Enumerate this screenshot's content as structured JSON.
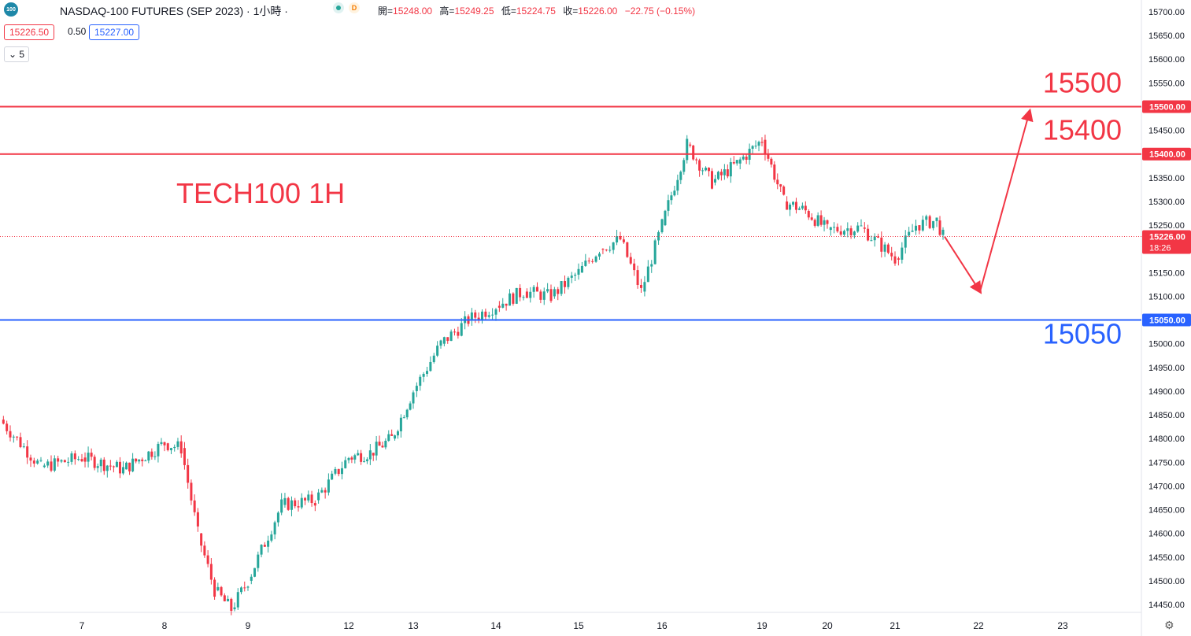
{
  "header": {
    "logo_text": "100",
    "title": "NASDAQ-100 FUTURES (SEP 2023) · 1小時 ·",
    "badge_d": "D",
    "ohlc": {
      "open_label": "開=",
      "open": "15248.00",
      "high_label": "高=",
      "high": "15249.25",
      "low_label": "低=",
      "low": "15224.75",
      "close_label": "收=",
      "close": "15226.00",
      "change": "−22.75 (−0.15%)"
    }
  },
  "trade": {
    "sell_price": "15226.50",
    "spread": "0.50",
    "buy_price": "15227.00",
    "indicator_count": "5"
  },
  "chart_data": {
    "type": "candlestick",
    "title": "TECH100 1H",
    "ylim": [
      14425,
      15720
    ],
    "y_ticks": [
      15700,
      15650,
      15600,
      15550,
      15500,
      15450,
      15400,
      15350,
      15300,
      15250,
      15200,
      15150,
      15100,
      15050,
      15000,
      14950,
      14900,
      14850,
      14800,
      14750,
      14700,
      14650,
      14600,
      14550,
      14500,
      14450
    ],
    "x_ticks": [
      "7",
      "8",
      "9",
      "12",
      "13",
      "14",
      "15",
      "16",
      "19",
      "20",
      "21",
      "22",
      "23"
    ],
    "series_keypoints": [
      {
        "t": "6",
        "price": 14840
      },
      {
        "t": "6",
        "price": 14740
      },
      {
        "t": "7",
        "price": 14760
      },
      {
        "t": "7",
        "price": 14735
      },
      {
        "t": "8",
        "price": 14790
      },
      {
        "t": "8",
        "price": 14780
      },
      {
        "t": "8",
        "price": 14600
      },
      {
        "t": "8",
        "price": 14480
      },
      {
        "t": "8",
        "price": 14440
      },
      {
        "t": "9",
        "price": 14500
      },
      {
        "t": "9",
        "price": 14660
      },
      {
        "t": "9",
        "price": 14670
      },
      {
        "t": "12",
        "price": 14760
      },
      {
        "t": "12",
        "price": 14770
      },
      {
        "t": "12",
        "price": 14800
      },
      {
        "t": "13",
        "price": 14900
      },
      {
        "t": "13",
        "price": 15000
      },
      {
        "t": "13",
        "price": 15050
      },
      {
        "t": "14",
        "price": 15080
      },
      {
        "t": "14",
        "price": 15110
      },
      {
        "t": "14",
        "price": 15100
      },
      {
        "t": "15",
        "price": 15150
      },
      {
        "t": "15",
        "price": 15200
      },
      {
        "t": "15",
        "price": 15220
      },
      {
        "t": "15",
        "price": 15110
      },
      {
        "t": "16",
        "price": 15250
      },
      {
        "t": "16",
        "price": 15420
      },
      {
        "t": "16",
        "price": 15340
      },
      {
        "t": "16",
        "price": 15380
      },
      {
        "t": "19",
        "price": 15430
      },
      {
        "t": "19",
        "price": 15300
      },
      {
        "t": "19",
        "price": 15280
      },
      {
        "t": "20",
        "price": 15240
      },
      {
        "t": "20",
        "price": 15245
      },
      {
        "t": "21",
        "price": 15180
      },
      {
        "t": "21",
        "price": 15250
      },
      {
        "t": "21",
        "price": 15260
      },
      {
        "t": "21",
        "price": 15226
      }
    ],
    "current_price": "15226.00",
    "countdown": "18:26",
    "levels": [
      {
        "value": 15500,
        "label": "15500.00",
        "annotation": "15500",
        "color": "#f23645"
      },
      {
        "value": 15400,
        "label": "15400.00",
        "annotation": "15400",
        "color": "#f23645"
      },
      {
        "value": 15050,
        "label": "15050.00",
        "annotation": "15050",
        "color": "#2962ff"
      }
    ],
    "projection": [
      {
        "t": "21",
        "price": 15226
      },
      {
        "t": "22",
        "price": 15110
      },
      {
        "t": "22",
        "price": 15490
      }
    ],
    "colors": {
      "up": "#26a69a",
      "down": "#f23645",
      "text_annotation": "#f23645",
      "support": "#2962ff"
    }
  }
}
